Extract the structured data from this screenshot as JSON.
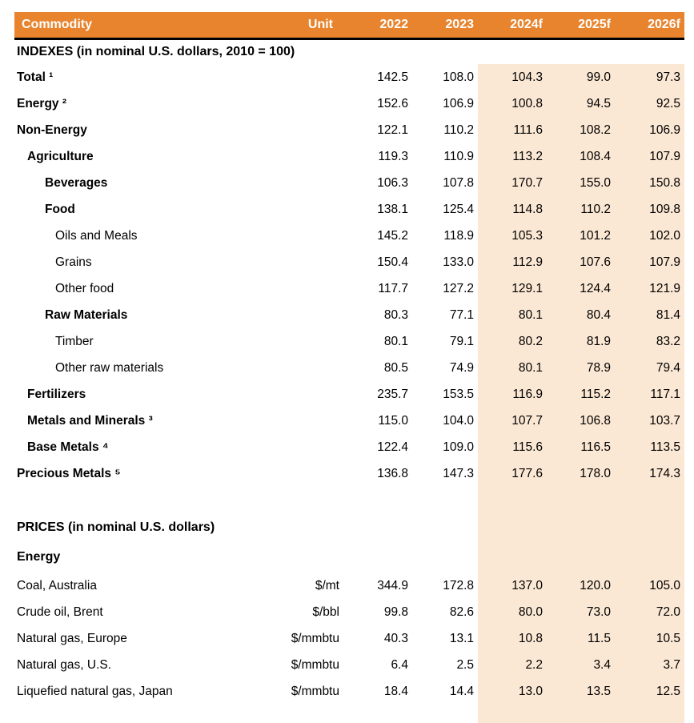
{
  "table": {
    "colors": {
      "header_bg": "#E8842E",
      "header_text": "#FFFFFF",
      "forecast_bg": "#FBE8D4",
      "rule": "#000000"
    },
    "header": {
      "commodity": "Commodity",
      "unit": "Unit",
      "years": [
        "2022",
        "2023",
        "2024f",
        "2025f",
        "2026f"
      ]
    },
    "rows": [
      {
        "kind": "section",
        "label": "INDEXES (in nominal U.S. dollars, 2010 = 100)",
        "shaded": false
      },
      {
        "kind": "data",
        "label": "Total ¹",
        "indent": 0,
        "bold": true,
        "unit": "",
        "values": [
          "142.5",
          "108.0",
          "104.3",
          "99.0",
          "97.3"
        ]
      },
      {
        "kind": "data",
        "label": "Energy ²",
        "indent": 0,
        "bold": true,
        "unit": "",
        "values": [
          "152.6",
          "106.9",
          "100.8",
          "94.5",
          "92.5"
        ]
      },
      {
        "kind": "data",
        "label": "Non-Energy",
        "indent": 0,
        "bold": true,
        "unit": "",
        "values": [
          "122.1",
          "110.2",
          "111.6",
          "108.2",
          "106.9"
        ]
      },
      {
        "kind": "data",
        "label": "Agriculture",
        "indent": 1,
        "bold": true,
        "unit": "",
        "values": [
          "119.3",
          "110.9",
          "113.2",
          "108.4",
          "107.9"
        ]
      },
      {
        "kind": "data",
        "label": "Beverages",
        "indent": 2,
        "bold": true,
        "unit": "",
        "values": [
          "106.3",
          "107.8",
          "170.7",
          "155.0",
          "150.8"
        ]
      },
      {
        "kind": "data",
        "label": "Food",
        "indent": 2,
        "bold": true,
        "unit": "",
        "values": [
          "138.1",
          "125.4",
          "114.8",
          "110.2",
          "109.8"
        ]
      },
      {
        "kind": "data",
        "label": "Oils and Meals",
        "indent": 3,
        "bold": false,
        "unit": "",
        "values": [
          "145.2",
          "118.9",
          "105.3",
          "101.2",
          "102.0"
        ]
      },
      {
        "kind": "data",
        "label": "Grains",
        "indent": 3,
        "bold": false,
        "unit": "",
        "values": [
          "150.4",
          "133.0",
          "112.9",
          "107.6",
          "107.9"
        ]
      },
      {
        "kind": "data",
        "label": "Other food",
        "indent": 3,
        "bold": false,
        "unit": "",
        "values": [
          "117.7",
          "127.2",
          "129.1",
          "124.4",
          "121.9"
        ]
      },
      {
        "kind": "data",
        "label": "Raw Materials",
        "indent": 2,
        "bold": true,
        "unit": "",
        "values": [
          "80.3",
          "77.1",
          "80.1",
          "80.4",
          "81.4"
        ]
      },
      {
        "kind": "data",
        "label": "Timber",
        "indent": 3,
        "bold": false,
        "unit": "",
        "values": [
          "80.1",
          "79.1",
          "80.2",
          "81.9",
          "83.2"
        ]
      },
      {
        "kind": "data",
        "label": "Other raw materials",
        "indent": 3,
        "bold": false,
        "unit": "",
        "values": [
          "80.5",
          "74.9",
          "80.1",
          "78.9",
          "79.4"
        ]
      },
      {
        "kind": "data",
        "label": "Fertilizers",
        "indent": 1,
        "bold": true,
        "unit": "",
        "values": [
          "235.7",
          "153.5",
          "116.9",
          "115.2",
          "117.1"
        ]
      },
      {
        "kind": "data",
        "label": "Metals and Minerals ³",
        "indent": 1,
        "bold": true,
        "unit": "",
        "values": [
          "115.0",
          "104.0",
          "107.7",
          "106.8",
          "103.7"
        ]
      },
      {
        "kind": "data",
        "label": "Base Metals ⁴",
        "indent": 1,
        "bold": true,
        "unit": "",
        "values": [
          "122.4",
          "109.0",
          "115.6",
          "116.5",
          "113.5"
        ]
      },
      {
        "kind": "data",
        "label": "Precious Metals ⁵",
        "indent": 0,
        "bold": true,
        "unit": "",
        "values": [
          "136.8",
          "147.3",
          "177.6",
          "178.0",
          "174.3"
        ]
      },
      {
        "kind": "spacer",
        "shaded": true
      },
      {
        "kind": "section",
        "label": "PRICES (in nominal U.S. dollars)",
        "shaded": true
      },
      {
        "kind": "section",
        "label": "Energy",
        "shaded": true,
        "sub": true
      },
      {
        "kind": "data",
        "label": "Coal, Australia",
        "indent": 0,
        "bold": false,
        "unit": "$/mt",
        "values": [
          "344.9",
          "172.8",
          "137.0",
          "120.0",
          "105.0"
        ]
      },
      {
        "kind": "data",
        "label": "Crude oil, Brent",
        "indent": 0,
        "bold": false,
        "unit": "$/bbl",
        "values": [
          "99.8",
          "82.6",
          "80.0",
          "73.0",
          "72.0"
        ]
      },
      {
        "kind": "data",
        "label": "Natural gas, Europe",
        "indent": 0,
        "bold": false,
        "unit": "$/mmbtu",
        "values": [
          "40.3",
          "13.1",
          "10.8",
          "11.5",
          "10.5"
        ]
      },
      {
        "kind": "data",
        "label": "Natural gas, U.S.",
        "indent": 0,
        "bold": false,
        "unit": "$/mmbtu",
        "values": [
          "6.4",
          "2.5",
          "2.2",
          "3.4",
          "3.7"
        ]
      },
      {
        "kind": "data",
        "label": "Liquefied natural gas, Japan",
        "indent": 0,
        "bold": false,
        "unit": "$/mmbtu",
        "values": [
          "18.4",
          "14.4",
          "13.0",
          "13.5",
          "12.5"
        ]
      },
      {
        "kind": "filler",
        "shaded": true
      }
    ]
  }
}
